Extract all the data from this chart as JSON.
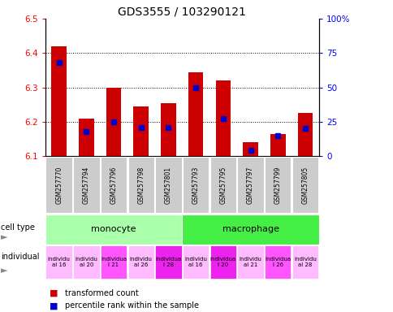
{
  "title": "GDS3555 / 103290121",
  "samples": [
    "GSM257770",
    "GSM257794",
    "GSM257796",
    "GSM257798",
    "GSM257801",
    "GSM257793",
    "GSM257795",
    "GSM257797",
    "GSM257799",
    "GSM257805"
  ],
  "bar_values": [
    6.42,
    6.21,
    6.3,
    6.245,
    6.255,
    6.345,
    6.32,
    6.14,
    6.165,
    6.225
  ],
  "percentile_values": [
    68,
    18,
    25,
    21,
    21,
    50,
    27,
    4,
    15,
    20
  ],
  "bar_bottom": 6.1,
  "ymin": 6.1,
  "ymax": 6.5,
  "y2min": 0,
  "y2max": 100,
  "y2ticks": [
    0,
    25,
    50,
    75,
    100
  ],
  "y2ticklabels": [
    "0",
    "25",
    "50",
    "75",
    "100%"
  ],
  "yticks": [
    6.1,
    6.2,
    6.3,
    6.4,
    6.5
  ],
  "bar_color": "#cc0000",
  "percentile_color": "#0000cc",
  "cell_types": [
    {
      "label": "monocyte",
      "start": 0,
      "end": 5,
      "color": "#aaffaa"
    },
    {
      "label": "macrophage",
      "start": 5,
      "end": 10,
      "color": "#44ee44"
    }
  ],
  "indiv_labels": [
    "individu\nal 16",
    "individu\nal 20",
    "individua\nl 21",
    "individu\nal 26",
    "individua\nl 28",
    "individu\nal 16",
    "individua\nl 20",
    "individu\nal 21",
    "individua\nl 26",
    "individu\nal 28"
  ],
  "indiv_colors": [
    "#ffbbff",
    "#ffbbff",
    "#ff55ff",
    "#ffbbff",
    "#ee22ee",
    "#ffbbff",
    "#ee22ee",
    "#ffbbff",
    "#ff55ff",
    "#ffbbff"
  ],
  "legend_red": "transformed count",
  "legend_blue": "percentile rank within the sample",
  "sample_bg_color": "#cccccc"
}
